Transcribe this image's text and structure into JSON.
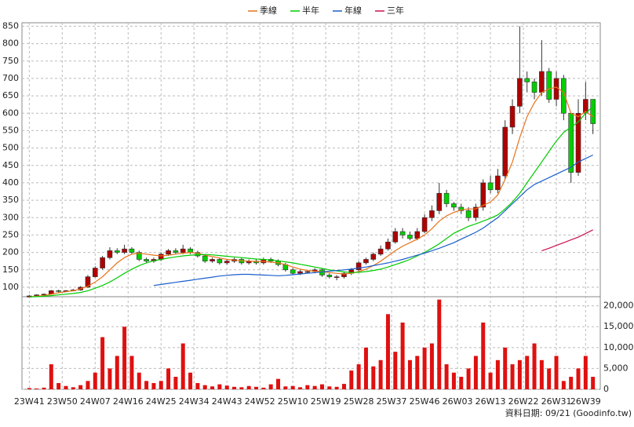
{
  "chart_data": {
    "type": "candlestick",
    "legend_position": "top",
    "grid": true,
    "up_color": "#b00000",
    "down_color": "#00d000",
    "x": [
      0,
      2,
      4,
      6,
      8,
      10,
      12,
      14,
      16,
      18,
      20,
      22,
      24,
      26,
      28,
      30,
      32,
      34,
      36,
      38,
      40,
      42,
      44,
      46,
      48,
      50,
      52,
      54,
      56,
      58,
      60,
      62,
      64,
      66,
      68,
      70,
      72,
      74,
      76,
      78,
      80,
      82,
      84,
      86,
      88,
      90,
      92,
      94,
      96,
      98,
      100,
      102,
      104,
      106,
      108,
      110,
      112,
      114,
      116,
      118,
      120,
      122,
      124,
      126,
      128,
      130,
      132,
      134,
      136,
      138,
      140,
      142,
      144,
      146,
      148,
      150,
      152,
      154
    ],
    "xlim": [
      -2,
      156
    ],
    "xticks": [
      {
        "value": 0,
        "label": "23W41"
      },
      {
        "value": 9,
        "label": "23W50"
      },
      {
        "value": 18,
        "label": "24W07"
      },
      {
        "value": 27,
        "label": "24W16"
      },
      {
        "value": 36,
        "label": "24W25"
      },
      {
        "value": 45,
        "label": "24W34"
      },
      {
        "value": 54,
        "label": "24W43"
      },
      {
        "value": 63,
        "label": "24W52"
      },
      {
        "value": 72,
        "label": "25W10"
      },
      {
        "value": 81,
        "label": "25W19"
      },
      {
        "value": 90,
        "label": "25W28"
      },
      {
        "value": 99,
        "label": "25W37"
      },
      {
        "value": 108,
        "label": "25W46"
      },
      {
        "value": 117,
        "label": "26W03"
      },
      {
        "value": 126,
        "label": "26W13"
      },
      {
        "value": 135,
        "label": "26W22"
      },
      {
        "value": 144,
        "label": "26W31"
      },
      {
        "value": 152,
        "label": "26W39"
      }
    ],
    "ylim": [
      75,
      860
    ],
    "yticks": [
      100,
      150,
      200,
      250,
      300,
      350,
      400,
      450,
      500,
      550,
      600,
      650,
      700,
      750,
      800,
      850
    ],
    "open": [
      72,
      75,
      78,
      80,
      90,
      88,
      90,
      92,
      100,
      130,
      155,
      185,
      205,
      200,
      210,
      200,
      180,
      175,
      180,
      195,
      205,
      200,
      210,
      200,
      190,
      175,
      180,
      170,
      175,
      180,
      170,
      175,
      170,
      180,
      175,
      165,
      150,
      140,
      145,
      145,
      150,
      135,
      130,
      130,
      140,
      150,
      170,
      180,
      195,
      210,
      230,
      260,
      250,
      240,
      260,
      300,
      320,
      370,
      340,
      330,
      320,
      300,
      330,
      400,
      380,
      420,
      560,
      620,
      700,
      690,
      660,
      720,
      640,
      700,
      600,
      430,
      600,
      640
    ],
    "high": [
      78,
      80,
      82,
      92,
      93,
      92,
      95,
      103,
      135,
      160,
      190,
      215,
      212,
      222,
      215,
      205,
      185,
      185,
      200,
      210,
      212,
      222,
      215,
      205,
      195,
      185,
      185,
      180,
      185,
      185,
      180,
      180,
      185,
      185,
      180,
      170,
      155,
      150,
      150,
      155,
      155,
      140,
      135,
      145,
      155,
      175,
      185,
      200,
      220,
      240,
      270,
      270,
      260,
      270,
      310,
      335,
      400,
      380,
      345,
      340,
      330,
      340,
      410,
      420,
      440,
      580,
      640,
      850,
      720,
      700,
      810,
      730,
      720,
      710,
      600,
      640,
      690,
      640
    ],
    "low": [
      70,
      73,
      76,
      79,
      85,
      86,
      88,
      90,
      98,
      128,
      150,
      180,
      195,
      195,
      195,
      175,
      170,
      170,
      175,
      190,
      195,
      195,
      195,
      185,
      170,
      170,
      165,
      165,
      170,
      165,
      165,
      165,
      165,
      170,
      160,
      145,
      135,
      135,
      140,
      140,
      130,
      125,
      120,
      125,
      135,
      145,
      165,
      175,
      190,
      205,
      225,
      240,
      235,
      235,
      255,
      290,
      310,
      330,
      320,
      310,
      290,
      290,
      320,
      370,
      370,
      410,
      540,
      600,
      660,
      640,
      650,
      630,
      620,
      580,
      400,
      420,
      580,
      540
    ],
    "close": [
      75,
      78,
      80,
      90,
      88,
      90,
      92,
      100,
      130,
      155,
      185,
      205,
      200,
      210,
      200,
      180,
      175,
      180,
      195,
      205,
      200,
      210,
      200,
      190,
      175,
      180,
      170,
      175,
      180,
      170,
      175,
      170,
      180,
      175,
      165,
      150,
      140,
      145,
      145,
      150,
      135,
      130,
      130,
      140,
      150,
      170,
      180,
      195,
      210,
      230,
      260,
      250,
      240,
      260,
      300,
      320,
      370,
      340,
      330,
      320,
      300,
      330,
      400,
      380,
      420,
      560,
      620,
      700,
      690,
      660,
      720,
      640,
      700,
      600,
      430,
      600,
      640,
      570
    ],
    "series": [
      {
        "name": "季線",
        "color": "#e8731a",
        "values": [
          72,
          74,
          76,
          80,
          84,
          87,
          90,
          95,
          103,
          115,
          130,
          150,
          170,
          185,
          195,
          198,
          195,
          192,
          190,
          192,
          195,
          198,
          200,
          198,
          192,
          188,
          184,
          180,
          178,
          176,
          175,
          174,
          174,
          172,
          170,
          165,
          158,
          152,
          148,
          146,
          145,
          142,
          140,
          138,
          140,
          145,
          152,
          162,
          175,
          190,
          205,
          218,
          228,
          238,
          250,
          268,
          290,
          305,
          315,
          322,
          325,
          325,
          335,
          345,
          365,
          410,
          460,
          530,
          590,
          630,
          660,
          670,
          675,
          660,
          600,
          590,
          605,
          590
        ]
      },
      {
        "name": "半年",
        "color": "#00cc00",
        "values": [
          72,
          73,
          74,
          76,
          78,
          80,
          82,
          85,
          90,
          97,
          105,
          115,
          127,
          140,
          152,
          162,
          170,
          176,
          180,
          184,
          187,
          190,
          192,
          193,
          194,
          193,
          191,
          189,
          187,
          185,
          183,
          181,
          180,
          178,
          176,
          173,
          170,
          166,
          162,
          158,
          154,
          150,
          147,
          144,
          142,
          143,
          145,
          148,
          152,
          158,
          165,
          172,
          180,
          190,
          200,
          212,
          225,
          240,
          255,
          265,
          275,
          282,
          290,
          298,
          308,
          325,
          345,
          370,
          400,
          430,
          460,
          490,
          520,
          545,
          560,
          575,
          600,
          620
        ]
      },
      {
        "name": "年線",
        "color": "#1a5fcc",
        "values": [
          null,
          null,
          null,
          null,
          null,
          null,
          null,
          null,
          null,
          null,
          null,
          null,
          null,
          null,
          null,
          null,
          null,
          105,
          108,
          111,
          114,
          117,
          120,
          123,
          126,
          129,
          132,
          134,
          136,
          137,
          137,
          136,
          135,
          134,
          133,
          134,
          136,
          138,
          140,
          142,
          144,
          146,
          148,
          150,
          152,
          155,
          158,
          162,
          166,
          170,
          175,
          180,
          186,
          192,
          198,
          205,
          212,
          220,
          228,
          238,
          248,
          258,
          270,
          285,
          300,
          320,
          340,
          360,
          380,
          395,
          405,
          415,
          425,
          435,
          445,
          460,
          470,
          480
        ]
      },
      {
        "name": "三年",
        "color": "#cc1050",
        "values": [
          null,
          null,
          null,
          null,
          null,
          null,
          null,
          null,
          null,
          null,
          null,
          null,
          null,
          null,
          null,
          null,
          null,
          null,
          null,
          null,
          null,
          null,
          null,
          null,
          null,
          null,
          null,
          null,
          null,
          null,
          null,
          null,
          null,
          null,
          null,
          null,
          null,
          null,
          null,
          null,
          null,
          null,
          null,
          null,
          null,
          null,
          null,
          null,
          null,
          null,
          null,
          null,
          null,
          null,
          null,
          null,
          null,
          null,
          null,
          null,
          null,
          null,
          null,
          null,
          null,
          null,
          null,
          null,
          null,
          null,
          205,
          212,
          220,
          228,
          236,
          244,
          254,
          265
        ]
      }
    ],
    "volume": {
      "color": "#e01010",
      "values": [
        300,
        200,
        400,
        6000,
        1500,
        800,
        500,
        1000,
        2000,
        4000,
        12500,
        5000,
        8000,
        15000,
        8000,
        4000,
        2000,
        1500,
        2000,
        5000,
        3000,
        11000,
        4000,
        1500,
        1000,
        700,
        1200,
        900,
        600,
        500,
        800,
        600,
        400,
        1200,
        2500,
        700,
        800,
        500,
        1000,
        800,
        1200,
        700,
        600,
        1300,
        4500,
        6000,
        10000,
        5500,
        7000,
        18000,
        9000,
        16000,
        7000,
        8000,
        10000,
        11000,
        21500,
        6000,
        4000,
        3000,
        5000,
        8000,
        16000,
        4000,
        7000,
        10000,
        6000,
        7000,
        8000,
        11000,
        7000,
        5000,
        8000,
        2000,
        3000,
        5000,
        8000,
        3000
      ],
      "ylim": [
        0,
        22000
      ],
      "yticks": [
        0,
        {
          "value": 5000,
          "label": "5,000"
        },
        {
          "value": 10000,
          "label": "10,000"
        },
        {
          "value": 15000,
          "label": "15,000"
        },
        {
          "value": 20000,
          "label": "20,000"
        }
      ]
    },
    "footer": "資料日期: 09/21  (Goodinfo.tw)"
  }
}
